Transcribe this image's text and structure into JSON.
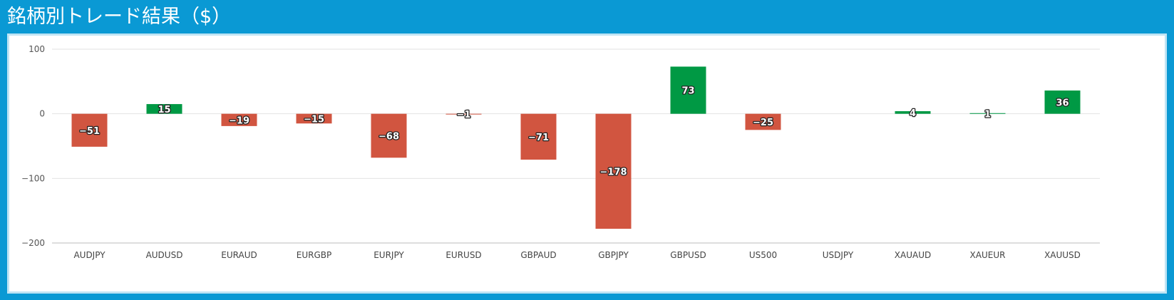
{
  "header": {
    "title": "銘柄別トレード結果（$）"
  },
  "colors": {
    "positive": "#009944",
    "negative": "#d15540",
    "header_bg": "#0a99d4"
  },
  "chart_data": {
    "type": "bar",
    "categories": [
      "AUDJPY",
      "AUDUSD",
      "EURAUD",
      "EURGBP",
      "EURJPY",
      "EURUSD",
      "GBPAUD",
      "GBPJPY",
      "GBPUSD",
      "US500",
      "USDJPY",
      "XAUAUD",
      "XAUEUR",
      "XAUUSD"
    ],
    "values": [
      -51,
      15,
      -19,
      -15,
      -68,
      -1,
      -71,
      -178,
      73,
      -25,
      0,
      4,
      1,
      36
    ],
    "data_labels": [
      "−51",
      "15",
      "−19",
      "−15",
      "−68",
      "−1",
      "−71",
      "−178",
      "73",
      "−25",
      "",
      "4",
      "1",
      "36"
    ],
    "ylim": [
      -200,
      100
    ],
    "yticks": [
      100,
      0,
      -100,
      -200
    ],
    "ytick_labels": [
      "100",
      "0",
      "−100",
      "−200"
    ],
    "grid": true,
    "title": "",
    "xlabel": "",
    "ylabel": ""
  }
}
